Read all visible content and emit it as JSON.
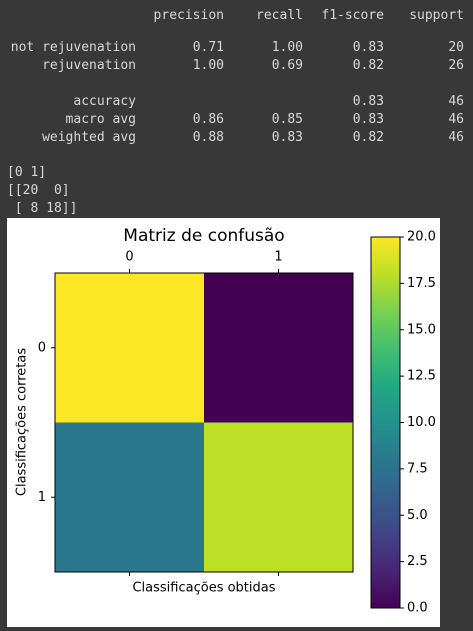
{
  "report": {
    "columns": [
      "precision",
      "recall",
      "f1-score",
      "support"
    ],
    "rows": [
      {
        "label": "not rejuvenation",
        "precision": "0.71",
        "recall": "1.00",
        "f1-score": "0.83",
        "support": "20"
      },
      {
        "label": "rejuvenation",
        "precision": "1.00",
        "recall": "0.69",
        "f1-score": "0.82",
        "support": "26"
      },
      {
        "label": "accuracy",
        "f1-score": "0.83",
        "support": "46"
      },
      {
        "label": "macro avg",
        "precision": "0.86",
        "recall": "0.85",
        "f1-score": "0.83",
        "support": "46"
      },
      {
        "label": "weighted avg",
        "precision": "0.88",
        "recall": "0.83",
        "f1-score": "0.82",
        "support": "46"
      }
    ]
  },
  "printed": [
    "[0 1]",
    "[[20  0]",
    " [ 8 18]]"
  ],
  "chart_data": {
    "type": "heatmap",
    "title": "Matriz de confusão",
    "xlabel": "Classificações obtidas",
    "ylabel": "Classificações corretas",
    "x_categories": [
      "0",
      "1"
    ],
    "y_categories": [
      "0",
      "1"
    ],
    "values": [
      [
        20,
        0
      ],
      [
        8,
        18
      ]
    ],
    "colormap": "viridis",
    "clim": [
      0,
      20
    ],
    "cticks": [
      {
        "value": 0,
        "label": "0.0"
      },
      {
        "value": 2.5,
        "label": "2.5"
      },
      {
        "value": 5,
        "label": "5.0"
      },
      {
        "value": 7.5,
        "label": "7.5"
      },
      {
        "value": 10,
        "label": "10.0"
      },
      {
        "value": 12.5,
        "label": "12.5"
      },
      {
        "value": 15,
        "label": "15.0"
      },
      {
        "value": 17.5,
        "label": "17.5"
      },
      {
        "value": 20,
        "label": "20.0"
      }
    ]
  }
}
